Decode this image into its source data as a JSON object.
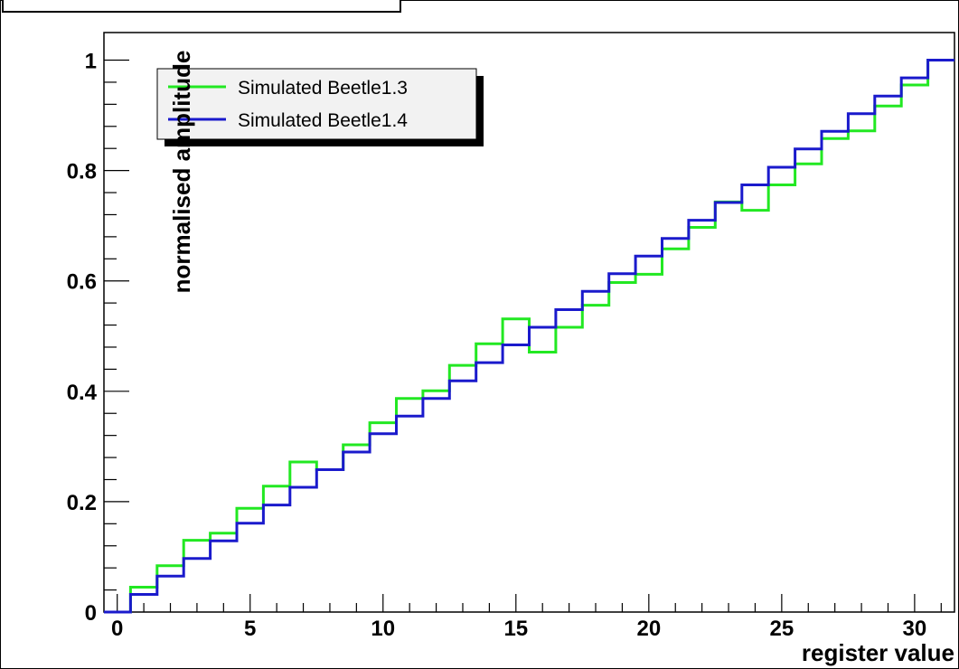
{
  "chart_data": {
    "type": "line",
    "step": true,
    "xlabel": "register value",
    "ylabel": "normalised amplitude",
    "xlim": [
      -0.5,
      31.5
    ],
    "ylim": [
      0,
      1.05
    ],
    "xticks": [
      0,
      5,
      10,
      15,
      20,
      25,
      30
    ],
    "xtick_labels": [
      "0",
      "5",
      "10",
      "15",
      "20",
      "25",
      "30"
    ],
    "yticks": [
      0,
      0.2,
      0.4,
      0.6,
      0.8,
      1
    ],
    "ytick_labels": [
      "0",
      "0.2",
      "0.4",
      "0.6",
      "0.8",
      "1"
    ],
    "grid": false,
    "legend_position": "top-left",
    "x": [
      0,
      1,
      2,
      3,
      4,
      5,
      6,
      7,
      8,
      9,
      10,
      11,
      12,
      13,
      14,
      15,
      16,
      17,
      18,
      19,
      20,
      21,
      22,
      23,
      24,
      25,
      26,
      27,
      28,
      29,
      30,
      31
    ],
    "series": [
      {
        "name": "Simulated Beetle1.3",
        "color": "#22e822",
        "values": [
          0,
          0.045,
          0.084,
          0.13,
          0.143,
          0.188,
          0.228,
          0.272,
          0.258,
          0.303,
          0.343,
          0.387,
          0.401,
          0.447,
          0.486,
          0.531,
          0.471,
          0.516,
          0.556,
          0.597,
          0.612,
          0.658,
          0.697,
          0.743,
          0.728,
          0.774,
          0.812,
          0.858,
          0.872,
          0.917,
          0.955,
          1.0
        ]
      },
      {
        "name": "Simulated Beetle1.4",
        "color": "#1a1acc",
        "values": [
          0,
          0.032,
          0.065,
          0.097,
          0.129,
          0.161,
          0.194,
          0.226,
          0.258,
          0.29,
          0.323,
          0.355,
          0.387,
          0.419,
          0.452,
          0.484,
          0.516,
          0.548,
          0.581,
          0.613,
          0.645,
          0.677,
          0.71,
          0.742,
          0.774,
          0.806,
          0.839,
          0.871,
          0.903,
          0.935,
          0.968,
          1.0
        ]
      }
    ]
  }
}
